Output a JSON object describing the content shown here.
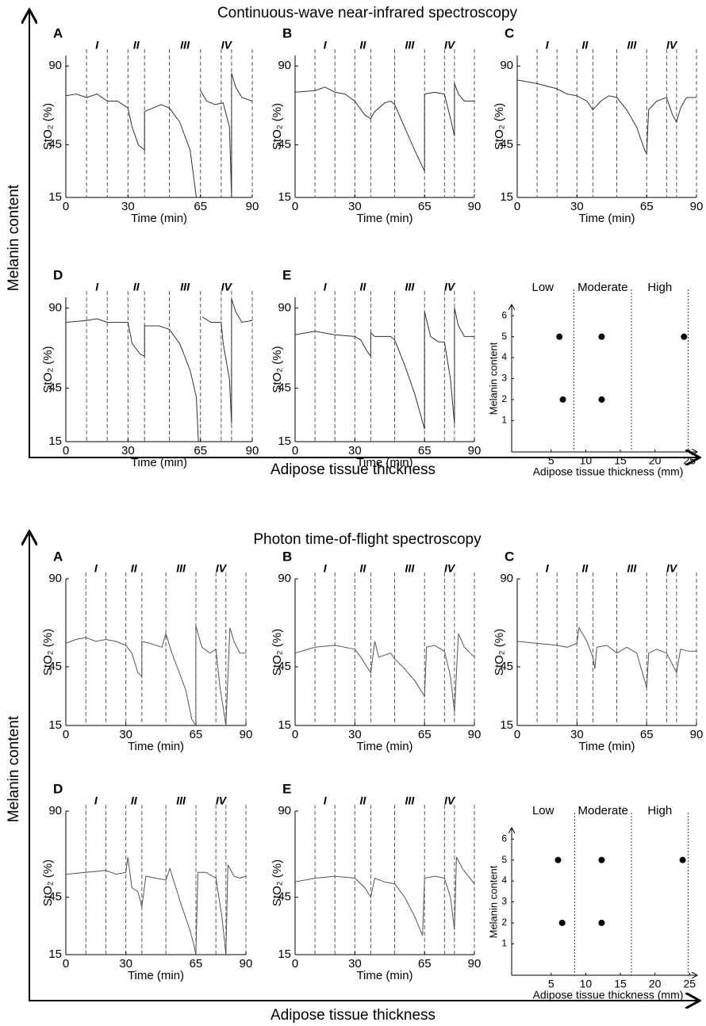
{
  "figures": [
    {
      "title": "Continuous-wave near-infrared spectroscopy",
      "y_label": "Melanin content",
      "x_label": "Adipose tissue thickness"
    },
    {
      "title": "Photon time-of-flight spectroscopy",
      "y_label": "Melanin content",
      "x_label": "Adipose tissue thickness"
    }
  ],
  "chart_data": [
    {
      "type": "line",
      "label": "A",
      "phases": [
        "I",
        "II",
        "III",
        "IV"
      ],
      "intervals": [
        10,
        20,
        30,
        38,
        50,
        65,
        75,
        80,
        90
      ],
      "x_label": "Time (min)",
      "y_label": "StO₂ (%)",
      "xlim": [
        0,
        90
      ],
      "ylim": [
        15,
        96
      ],
      "xticks": [
        0,
        30,
        65,
        90
      ],
      "yticks": [
        15,
        45,
        90
      ],
      "color": "#333333",
      "x": [
        0,
        5,
        10,
        15,
        20,
        25,
        30,
        32,
        35,
        38,
        38,
        42,
        46,
        50,
        55,
        60,
        63,
        64,
        65,
        68,
        72,
        76,
        79,
        80,
        80,
        82,
        85,
        90
      ],
      "values": [
        73,
        74,
        72,
        74,
        70,
        70,
        66,
        55,
        45,
        42,
        64,
        66,
        68,
        66,
        58,
        42,
        15,
        null,
        76,
        70,
        68,
        69,
        55,
        15,
        86,
        78,
        72,
        70
      ]
    },
    {
      "type": "line",
      "label": "B",
      "phases": [
        "I",
        "II",
        "III",
        "IV"
      ],
      "intervals": [
        10,
        20,
        30,
        38,
        50,
        65,
        75,
        80,
        90
      ],
      "x_label": "Time (min)",
      "y_label": "StO₂ (%)",
      "xlim": [
        0,
        90
      ],
      "ylim": [
        15,
        96
      ],
      "xticks": [
        0,
        30,
        65,
        90
      ],
      "yticks": [
        15,
        45,
        90
      ],
      "color": "#333333",
      "x": [
        0,
        10,
        15,
        20,
        25,
        30,
        35,
        38,
        40,
        45,
        48,
        50,
        55,
        60,
        65,
        65,
        70,
        75,
        78,
        80,
        80,
        82,
        85,
        90
      ],
      "values": [
        75,
        76,
        78,
        75,
        74,
        70,
        62,
        60,
        64,
        69,
        70,
        68,
        55,
        42,
        30,
        74,
        75,
        74,
        60,
        50,
        80,
        74,
        70,
        70
      ]
    },
    {
      "type": "line",
      "label": "C",
      "phases": [
        "I",
        "II",
        "III",
        "IV"
      ],
      "intervals": [
        10,
        20,
        30,
        38,
        50,
        65,
        75,
        80,
        90
      ],
      "x_label": "Time (min)",
      "y_label": "StO₂ (%)",
      "xlim": [
        0,
        90
      ],
      "ylim": [
        15,
        96
      ],
      "xticks": [
        0,
        30,
        65,
        90
      ],
      "yticks": [
        15,
        45,
        90
      ],
      "color": "#333333",
      "x": [
        0,
        10,
        20,
        25,
        30,
        35,
        38,
        42,
        46,
        50,
        55,
        60,
        64,
        65,
        66,
        70,
        75,
        78,
        80,
        82,
        85,
        90
      ],
      "values": [
        82,
        80,
        77,
        74,
        73,
        70,
        65,
        70,
        73,
        72,
        65,
        55,
        42,
        40,
        65,
        70,
        72,
        62,
        58,
        66,
        72,
        72
      ]
    },
    {
      "type": "line",
      "label": "D",
      "phases": [
        "I",
        "II",
        "III",
        "IV"
      ],
      "intervals": [
        10,
        20,
        30,
        38,
        50,
        65,
        75,
        80,
        90
      ],
      "x_label": "Time (min)",
      "y_label": "StO₂ (%)",
      "xlim": [
        0,
        90
      ],
      "ylim": [
        15,
        96
      ],
      "xticks": [
        0,
        30,
        65,
        90
      ],
      "yticks": [
        15,
        45,
        90
      ],
      "color": "#333333",
      "x": [
        0,
        10,
        15,
        20,
        30,
        32,
        36,
        38,
        38,
        45,
        50,
        55,
        60,
        63,
        64,
        65,
        66,
        70,
        75,
        76,
        79,
        80,
        80,
        82,
        85,
        90
      ],
      "values": [
        82,
        83,
        84,
        82,
        82,
        70,
        64,
        63,
        80,
        80,
        78,
        70,
        55,
        40,
        15,
        null,
        85,
        82,
        82,
        70,
        50,
        25,
        95,
        88,
        82,
        83
      ]
    },
    {
      "type": "line",
      "label": "E",
      "phases": [
        "I",
        "II",
        "III",
        "IV"
      ],
      "intervals": [
        10,
        20,
        30,
        38,
        50,
        65,
        75,
        80,
        90
      ],
      "x_label": "Time (min)",
      "y_label": "StO₂ (%)",
      "xlim": [
        0,
        90
      ],
      "ylim": [
        15,
        96
      ],
      "xticks": [
        0,
        30,
        65,
        90
      ],
      "yticks": [
        15,
        45,
        90
      ],
      "color": "#333333",
      "x": [
        0,
        10,
        20,
        30,
        33,
        36,
        38,
        38,
        40,
        48,
        50,
        55,
        60,
        65,
        65,
        68,
        72,
        75,
        78,
        80,
        80,
        82,
        85,
        90
      ],
      "values": [
        75,
        77,
        75,
        74,
        72,
        66,
        63,
        76,
        74,
        74,
        72,
        58,
        42,
        22,
        88,
        74,
        71,
        71,
        50,
        25,
        90,
        80,
        74,
        74
      ]
    },
    {
      "type": "scatter",
      "region_labels": [
        "Low",
        "Moderate",
        "High"
      ],
      "dividers": [
        8.3,
        16.6,
        24.8
      ],
      "x_label": "Adipose tissue thickness (mm)",
      "y_label": "Melanin content",
      "xlim": [
        -0.7,
        26
      ],
      "ylim": [
        -0.5,
        6.5
      ],
      "xticks": [
        5,
        10,
        15,
        20,
        25
      ],
      "yticks": [
        1,
        2,
        3,
        4,
        5,
        6
      ],
      "color": "#000000",
      "x": [
        6.2,
        12.3,
        24.2,
        6.7,
        12.3
      ],
      "values": [
        5,
        5,
        5,
        2,
        2
      ]
    },
    {
      "type": "line",
      "label": "A",
      "phases": [
        "I",
        "II",
        "III",
        "IV"
      ],
      "intervals": [
        10,
        20,
        30,
        38,
        50,
        65,
        75,
        80,
        90
      ],
      "x_label": "Time (min)",
      "y_label": "StO₂ (%)",
      "xlim": [
        0,
        90
      ],
      "ylim": [
        15,
        90
      ],
      "xticks": [
        0,
        30,
        65,
        90
      ],
      "yticks": [
        15,
        45,
        90
      ],
      "color": "#555555",
      "x": [
        0,
        5,
        10,
        15,
        20,
        25,
        30,
        33,
        36,
        38,
        38,
        42,
        48,
        50,
        53,
        56,
        60,
        63,
        65,
        65,
        68,
        72,
        75,
        77,
        80,
        82,
        84,
        87,
        90
      ],
      "values": [
        57,
        59,
        60,
        58,
        59,
        58,
        56,
        52,
        42,
        40,
        58,
        57,
        55,
        62,
        52,
        44,
        33,
        18,
        15,
        66,
        55,
        52,
        54,
        35,
        15,
        65,
        58,
        52,
        52
      ]
    },
    {
      "type": "line",
      "label": "B",
      "phases": [
        "I",
        "II",
        "III",
        "IV"
      ],
      "intervals": [
        10,
        20,
        30,
        38,
        50,
        65,
        75,
        80,
        90
      ],
      "x_label": "Time (min)",
      "y_label": "StO₂ (%)",
      "xlim": [
        0,
        90
      ],
      "ylim": [
        15,
        90
      ],
      "xticks": [
        0,
        30,
        65,
        90
      ],
      "yticks": [
        15,
        45,
        90
      ],
      "color": "#555555",
      "x": [
        0,
        10,
        20,
        30,
        33,
        36,
        38,
        40,
        42,
        48,
        50,
        55,
        60,
        65,
        66,
        70,
        75,
        78,
        80,
        82,
        85,
        90
      ],
      "values": [
        52,
        55,
        56,
        54,
        50,
        45,
        42,
        58,
        50,
        52,
        49,
        44,
        38,
        30,
        55,
        56,
        53,
        40,
        22,
        62,
        55,
        50
      ]
    },
    {
      "type": "line",
      "label": "C",
      "phases": [
        "I",
        "II",
        "III",
        "IV"
      ],
      "intervals": [
        10,
        20,
        30,
        38,
        50,
        65,
        75,
        80,
        90
      ],
      "x_label": "Time (min)",
      "y_label": "StO₂ (%)",
      "xlim": [
        0,
        90
      ],
      "ylim": [
        15,
        90
      ],
      "xticks": [
        0,
        30,
        65,
        90
      ],
      "yticks": [
        15,
        45,
        90
      ],
      "color": "#555555",
      "x": [
        0,
        10,
        20,
        25,
        30,
        31,
        35,
        38,
        39,
        40,
        45,
        50,
        55,
        60,
        64,
        65,
        66,
        70,
        75,
        78,
        80,
        82,
        86,
        90
      ],
      "values": [
        58,
        57,
        56,
        55,
        57,
        65,
        58,
        50,
        44,
        55,
        56,
        52,
        55,
        52,
        38,
        34,
        52,
        54,
        52,
        46,
        42,
        54,
        53,
        53
      ]
    },
    {
      "type": "line",
      "label": "D",
      "phases": [
        "I",
        "II",
        "III",
        "IV"
      ],
      "intervals": [
        10,
        20,
        30,
        38,
        50,
        65,
        75,
        80,
        90
      ],
      "x_label": "Time (min)",
      "y_label": "StO₂ (%)",
      "xlim": [
        0,
        90
      ],
      "ylim": [
        15,
        90
      ],
      "xticks": [
        0,
        30,
        65,
        90
      ],
      "yticks": [
        15,
        45,
        90
      ],
      "color": "#555555",
      "x": [
        0,
        10,
        20,
        25,
        30,
        31,
        33,
        36,
        38,
        40,
        45,
        50,
        52,
        55,
        58,
        62,
        64,
        65,
        66,
        70,
        75,
        78,
        80,
        81,
        84,
        87,
        90
      ],
      "values": [
        57,
        58,
        59,
        57,
        58,
        66,
        50,
        48,
        40,
        56,
        55,
        54,
        60,
        50,
        40,
        28,
        20,
        15,
        58,
        58,
        55,
        35,
        15,
        62,
        56,
        55,
        56
      ]
    },
    {
      "type": "line",
      "label": "E",
      "phases": [
        "I",
        "II",
        "III",
        "IV"
      ],
      "intervals": [
        10,
        20,
        30,
        38,
        50,
        65,
        75,
        80,
        90
      ],
      "x_label": "Time (min)",
      "y_label": "StO₂ (%)",
      "xlim": [
        0,
        90
      ],
      "ylim": [
        15,
        90
      ],
      "xticks": [
        0,
        30,
        65,
        90
      ],
      "yticks": [
        15,
        45,
        90
      ],
      "color": "#555555",
      "x": [
        0,
        10,
        20,
        30,
        35,
        38,
        40,
        45,
        50,
        55,
        60,
        64,
        65,
        70,
        75,
        78,
        80,
        81,
        84,
        90
      ],
      "values": [
        53,
        55,
        56,
        55,
        50,
        45,
        55,
        53,
        52,
        45,
        35,
        25,
        55,
        56,
        55,
        45,
        28,
        66,
        60,
        52
      ]
    },
    {
      "type": "scatter",
      "region_labels": [
        "Low",
        "Moderate",
        "High"
      ],
      "dividers": [
        8.4,
        16.6,
        24.8
      ],
      "x_label": "Adipose tissue thickness (mm)",
      "y_label": "Melanin content",
      "xlim": [
        -0.7,
        26
      ],
      "ylim": [
        -0.5,
        6.5
      ],
      "xticks": [
        5,
        10,
        15,
        20,
        25
      ],
      "yticks": [
        1,
        2,
        3,
        4,
        5,
        6
      ],
      "color": "#000000",
      "x": [
        6.0,
        12.3,
        24.0,
        6.6,
        12.3
      ],
      "values": [
        5,
        5,
        5,
        2,
        2
      ]
    }
  ]
}
